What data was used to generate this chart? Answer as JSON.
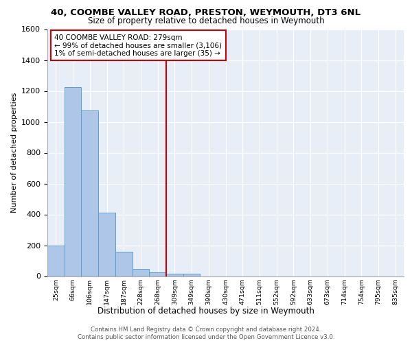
{
  "title1": "40, COOMBE VALLEY ROAD, PRESTON, WEYMOUTH, DT3 6NL",
  "title2": "Size of property relative to detached houses in Weymouth",
  "xlabel": "Distribution of detached houses by size in Weymouth",
  "ylabel": "Number of detached properties",
  "bin_labels": [
    "25sqm",
    "66sqm",
    "106sqm",
    "147sqm",
    "187sqm",
    "228sqm",
    "268sqm",
    "309sqm",
    "349sqm",
    "390sqm",
    "430sqm",
    "471sqm",
    "511sqm",
    "552sqm",
    "592sqm",
    "633sqm",
    "673sqm",
    "714sqm",
    "754sqm",
    "795sqm",
    "835sqm"
  ],
  "bar_values": [
    200,
    1225,
    1075,
    410,
    160,
    45,
    25,
    15,
    15,
    0,
    0,
    0,
    0,
    0,
    0,
    0,
    0,
    0,
    0,
    0,
    0
  ],
  "bar_color": "#aec6e8",
  "bar_edge_color": "#5a9fd4",
  "vline_x": 6.5,
  "vline_color": "#cc0000",
  "annotation_line1": "40 COOMBE VALLEY ROAD: 279sqm",
  "annotation_line2": "← 99% of detached houses are smaller (3,106)",
  "annotation_line3": "1% of semi-detached houses are larger (35) →",
  "annotation_box_color": "#ffffff",
  "annotation_box_edge": "#cc0000",
  "ylim": [
    0,
    1600
  ],
  "yticks": [
    0,
    200,
    400,
    600,
    800,
    1000,
    1200,
    1400,
    1600
  ],
  "background_color": "#e8eef8",
  "footer1": "Contains HM Land Registry data © Crown copyright and database right 2024.",
  "footer2": "Contains public sector information licensed under the Open Government Licence v3.0."
}
